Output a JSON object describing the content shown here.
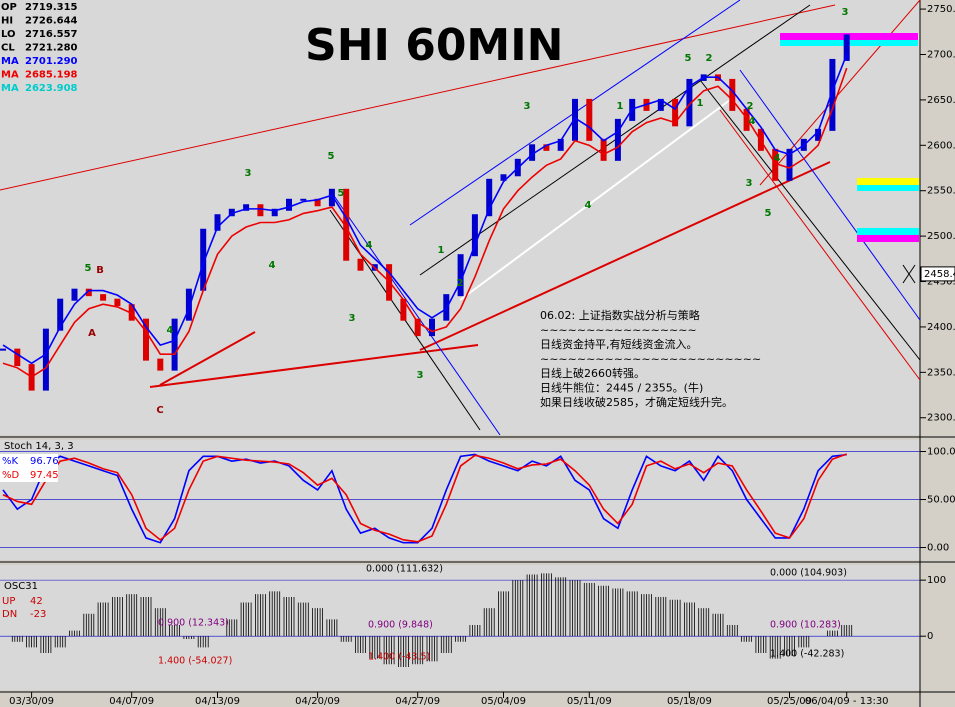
{
  "chart_data": [
    {
      "type": "line",
      "title": "SHI 60MIN",
      "categories": [
        null,
        null,
        "03/30/09",
        null,
        null,
        null,
        null,
        null,
        null,
        "04/07/09",
        null,
        null,
        null,
        null,
        null,
        "04/13/09",
        null,
        null,
        null,
        null,
        null,
        null,
        "04/20/09",
        null,
        null,
        null,
        null,
        null,
        null,
        "04/27/09",
        null,
        null,
        null,
        null,
        null,
        "05/04/09",
        null,
        null,
        null,
        null,
        null,
        "05/11/09",
        null,
        null,
        null,
        null,
        null,
        null,
        "05/18/09",
        null,
        null,
        null,
        null,
        null,
        null,
        "05/25/09",
        null,
        null,
        null,
        "06/04/09 - 13:30"
      ],
      "series": [
        {
          "name": "Close",
          "color": "#0000cc",
          "down_color": "#dd0000",
          "values": [
            2375,
            2358,
            2331,
            2397,
            2430,
            2441,
            2435,
            2430,
            2424,
            2408,
            2364,
            2353,
            2408,
            2441,
            2507,
            2523,
            2529,
            2534,
            2523,
            2529,
            2540,
            2540,
            2534,
            2551,
            2474,
            2463,
            2468,
            2430,
            2408,
            2391,
            2408,
            2435,
            2479,
            2523,
            2562,
            2567,
            2584,
            2600,
            2595,
            2606,
            2650,
            2606,
            2584,
            2628,
            2650,
            2639,
            2650,
            2622,
            2672,
            2677,
            2672,
            2639,
            2617,
            2595,
            2562,
            2595,
            2606,
            2617,
            2694,
            2721
          ]
        },
        {
          "name": "MA",
          "color": "#0000ff",
          "values": [
            2380,
            2370,
            2360,
            2370,
            2400,
            2425,
            2440,
            2440,
            2435,
            2425,
            2400,
            2380,
            2385,
            2420,
            2470,
            2510,
            2525,
            2530,
            2530,
            2528,
            2532,
            2538,
            2540,
            2545,
            2520,
            2490,
            2475,
            2460,
            2440,
            2420,
            2410,
            2420,
            2450,
            2490,
            2530,
            2560,
            2575,
            2590,
            2600,
            2605,
            2630,
            2620,
            2605,
            2615,
            2640,
            2645,
            2650,
            2640,
            2665,
            2675,
            2675,
            2660,
            2640,
            2620,
            2595,
            2590,
            2600,
            2615,
            2660,
            2700
          ]
        },
        {
          "name": "MA",
          "color": "#ee0000",
          "values": [
            2360,
            2355,
            2345,
            2355,
            2380,
            2405,
            2420,
            2425,
            2422,
            2415,
            2395,
            2370,
            2370,
            2395,
            2440,
            2480,
            2500,
            2510,
            2515,
            2515,
            2518,
            2525,
            2528,
            2532,
            2510,
            2480,
            2465,
            2450,
            2430,
            2405,
            2395,
            2400,
            2420,
            2455,
            2495,
            2530,
            2550,
            2565,
            2578,
            2585,
            2605,
            2600,
            2590,
            2598,
            2615,
            2625,
            2630,
            2625,
            2645,
            2660,
            2665,
            2650,
            2630,
            2605,
            2580,
            2575,
            2585,
            2600,
            2640,
            2685
          ]
        }
      ],
      "readouts": [
        {
          "label": "OP",
          "value": "2719.315",
          "color": "#000000"
        },
        {
          "label": "HI",
          "value": "2726.644",
          "color": "#000000"
        },
        {
          "label": "LO",
          "value": "2716.557",
          "color": "#000000"
        },
        {
          "label": "CL",
          "value": "2721.280",
          "color": "#000000"
        },
        {
          "label": "MA",
          "value": "2701.290",
          "color": "#0000ff"
        },
        {
          "label": "MA",
          "value": "2685.198",
          "color": "#ee0000"
        },
        {
          "label": "MA",
          "value": "2623.908",
          "color": "#00cccc"
        }
      ],
      "ylim": [
        2281,
        2760
      ],
      "yticks": [
        {
          "value": 2300,
          "label": "2300.00"
        },
        {
          "value": 2350,
          "label": "2350.00"
        },
        {
          "value": 2400,
          "label": "2400.00"
        },
        {
          "value": 2450,
          "label": "2450.00"
        },
        {
          "value": 2500,
          "label": "2500.00"
        },
        {
          "value": 2550,
          "label": "2550.00"
        },
        {
          "value": 2600,
          "label": "2600.00"
        },
        {
          "value": 2650,
          "label": "2650.00"
        },
        {
          "value": 2700,
          "label": "2700.00"
        },
        {
          "value": 2750,
          "label": "2750.00"
        }
      ],
      "cursor_label": {
        "value": 2458.4,
        "label": "2458.4"
      },
      "wave_labels": [
        "5",
        "B",
        "A",
        "C",
        "3",
        "4",
        "5",
        "3",
        "4",
        "1",
        "2",
        "3",
        "5",
        "3",
        "4",
        "1",
        "5",
        "2",
        "4",
        "1",
        "2",
        "3",
        "4",
        "5",
        "4",
        "3"
      ],
      "annotation": [
        "06.02: 上证指数实战分析与策略",
        "~~~~~~~~~~~~~~~~~",
        "日线资金持平,有短线资金流入。",
        "~~~~~~~~~~~~~~~~~~~~~~~~",
        "日线上破2660转强。",
        "日线牛熊位：2445 / 2355。(牛)",
        "如果日线收破2585，才确定短线升完。"
      ]
    },
    {
      "type": "line",
      "title": "Stoch 14, 3, 3",
      "series": [
        {
          "name": "%K",
          "readout": "96.76",
          "color": "#0000ff",
          "values": [
            60,
            40,
            50,
            85,
            95,
            90,
            85,
            80,
            75,
            40,
            10,
            5,
            30,
            80,
            95,
            95,
            90,
            92,
            88,
            90,
            85,
            70,
            60,
            80,
            40,
            15,
            20,
            10,
            5,
            5,
            20,
            60,
            95,
            97,
            90,
            85,
            80,
            90,
            85,
            95,
            70,
            60,
            30,
            20,
            60,
            95,
            85,
            80,
            90,
            70,
            95,
            80,
            50,
            30,
            10,
            10,
            40,
            80,
            95,
            96.76
          ]
        },
        {
          "name": "%D",
          "readout": "97.45",
          "color": "#ee0000",
          "values": [
            55,
            48,
            45,
            70,
            90,
            93,
            88,
            82,
            78,
            55,
            20,
            8,
            20,
            60,
            90,
            95,
            93,
            91,
            90,
            89,
            87,
            78,
            65,
            72,
            55,
            25,
            18,
            14,
            8,
            6,
            12,
            45,
            85,
            96,
            93,
            88,
            82,
            86,
            87,
            92,
            80,
            65,
            40,
            25,
            45,
            85,
            90,
            82,
            87,
            78,
            88,
            85,
            60,
            38,
            15,
            10,
            30,
            70,
            92,
            97.45
          ]
        }
      ],
      "ylim": [
        -13,
        112
      ],
      "yticks": [
        {
          "value": 0,
          "label": "0.00"
        },
        {
          "value": 50,
          "label": "50.00"
        },
        {
          "value": 100,
          "label": "100.00"
        }
      ]
    },
    {
      "type": "bar",
      "title": "OSC31",
      "series": [
        {
          "name": "OSC31",
          "color": "#000000",
          "values": [
            0,
            -10,
            -20,
            -30,
            -20,
            10,
            40,
            60,
            70,
            75,
            70,
            50,
            20,
            -5,
            -20,
            0,
            30,
            60,
            75,
            80,
            70,
            60,
            50,
            30,
            -10,
            -30,
            -40,
            -50,
            -55,
            -50,
            -45,
            -30,
            -10,
            20,
            50,
            80,
            100,
            110,
            112,
            105,
            100,
            95,
            90,
            85,
            80,
            75,
            70,
            65,
            60,
            50,
            40,
            20,
            -10,
            -30,
            -40,
            -35,
            -20,
            0,
            10,
            20
          ]
        }
      ],
      "readouts": [
        {
          "label": "UP",
          "value": "42"
        },
        {
          "label": "DN",
          "value": "-23"
        }
      ],
      "ylim": [
        -96,
        127
      ],
      "yticks": [
        0,
        100
      ],
      "levels": [
        "0.000 (111.632)",
        "0.000 (104.903)",
        "0.900 (12.343)",
        "0.900 (9.848)",
        "0.900 (10.283)",
        "1.400 (-54.027)",
        "1.400 (-43.5)",
        "1.400 (-42.283)"
      ]
    }
  ]
}
